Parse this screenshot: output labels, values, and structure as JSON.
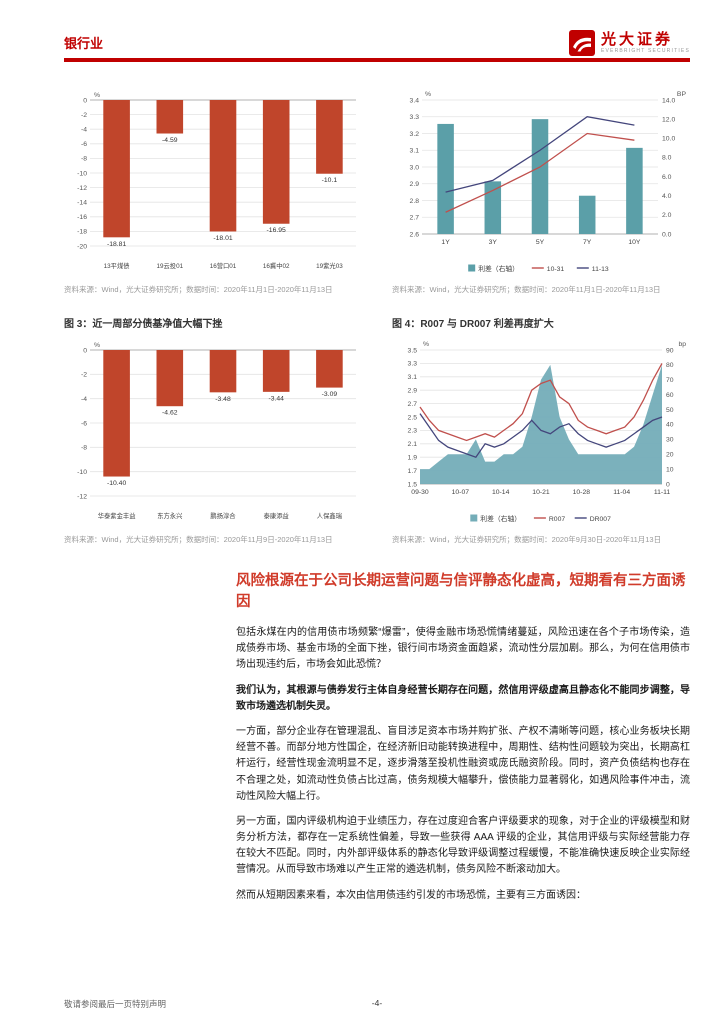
{
  "header": {
    "section": "银行业",
    "logo_cn": "光大证券",
    "logo_en": "EVERBRIGHT SECURITIES"
  },
  "section": {
    "heading": "风险根源在于公司长期运营问题与信评静态化虚高，短期看有三方面诱因",
    "p1": "包括永煤在内的信用债市场频繁“爆雷”，使得金融市场恐慌情绪蔓延，风险迅速在各个子市场传染，造成债券市场、基金市场的全面下挫，银行间市场资金面趋紧，流动性分层加剧。那么，为何在信用债市场出现违约后，市场会如此恐慌？",
    "p2": "我们认为，其根源与债券发行主体自身经营长期存在问题，然信用评级虚高且静态化不能同步调整，导致市场遴选机制失灵。",
    "p3": "一方面，部分企业存在管理混乱、盲目涉足资本市场并购扩张、产权不清晰等问题，核心业务板块长期经营不善。而部分地方性国企，在经济新旧动能转换进程中，周期性、结构性问题较为突出，长期高杠杆运行，经营性现金流明显不足，逐步滑落至投机性融资或庞氏融资阶段。同时，资产负债结构也存在不合理之处，如流动性负债占比过高，债务规模大幅攀升，偿债能力显著弱化，如遇风险事件冲击，流动性风险大幅上行。",
    "p4": "另一方面，国内评级机构迫于业绩压力，存在过度迎合客户评级要求的现象，对于企业的评级模型和财务分析方法，都存在一定系统性偏差，导致一些获得 AAA 评级的企业，其信用评级与实际经营能力存在较大不匹配。同时，内外部评级体系的静态化导致评级调整过程缓慢，不能准确快速反映企业实际经营情况。从而导致市场难以产生正常的遴选机制，债务风险不断滚动加大。",
    "p5": "然而从短期因素来看，本次由信用债违约引发的市场恐慌，主要有三方面诱因："
  },
  "footer": {
    "disclaimer": "敬请参阅最后一页特别声明",
    "page": "-4-"
  },
  "chart_data": [
    {
      "type": "bar",
      "title": "",
      "unit": "%",
      "categories": [
        "13平煤债",
        "19云投01",
        "16营口01",
        "16冀中02",
        "19紫光03"
      ],
      "values": [
        -18.81,
        -4.59,
        -18.01,
        -16.95,
        -10.1
      ],
      "labels": [
        "-18.81",
        "-4.59",
        "-18.01",
        "-16.95",
        "-10.1"
      ],
      "ylim": [
        -20,
        0
      ],
      "ytick_step": 2,
      "bar_color": "#c0452b",
      "source": "资料来源：Wind，光大证券研究所；数据时间：2020年11月1日-2020年11月13日"
    },
    {
      "type": "bar-line",
      "title": "",
      "unit_left": "%",
      "unit_right": "BP",
      "categories": [
        "1Y",
        "3Y",
        "5Y",
        "7Y",
        "10Y"
      ],
      "bars": {
        "name": "利差（右轴）",
        "values": [
          11.5,
          5.5,
          12.0,
          4.0,
          9.0
        ],
        "color": "#5b9fa8"
      },
      "lines": [
        {
          "name": "10-31",
          "values": [
            2.73,
            2.86,
            3.0,
            3.2,
            3.16
          ],
          "color": "#c0504d"
        },
        {
          "name": "11-13",
          "values": [
            2.85,
            2.92,
            3.1,
            3.3,
            3.25
          ],
          "color": "#44467c"
        }
      ],
      "ylim_left": [
        2.6,
        3.4
      ],
      "ytick_left": 0.1,
      "ylim_right": [
        0,
        14
      ],
      "ytick_right": 2,
      "source": "资料来源：Wind，光大证券研究所；数据时间：2020年11月1日-2020年11月13日"
    },
    {
      "type": "bar",
      "title": "图 3：近一周部分债基净值大幅下挫",
      "unit": "%",
      "categories": [
        "华泰紫金丰益",
        "东方永兴",
        "鹏扬淳合",
        "泰康添益",
        "人保鑫瑞"
      ],
      "values": [
        -10.4,
        -4.62,
        -3.48,
        -3.44,
        -3.09
      ],
      "labels": [
        "-10.40",
        "-4.62",
        "-3.48",
        "-3.44",
        "-3.09"
      ],
      "ylim": [
        -12,
        0
      ],
      "ytick_step": 2,
      "bar_color": "#c0452b",
      "source": "资料来源：Wind，光大证券研究所；数据时间：2020年11月9日-2020年11月13日"
    },
    {
      "type": "area-line",
      "title": "图 4：R007 与 DR007 利差再度扩大",
      "unit_left": "%",
      "unit_right": "bp",
      "x_ticks": [
        "09-30",
        "10-07",
        "10-14",
        "10-21",
        "10-28",
        "11-04",
        "11-11"
      ],
      "area": {
        "name": "利差（右轴）",
        "color": "#74adb8",
        "values": [
          10,
          10,
          15,
          20,
          20,
          20,
          30,
          15,
          15,
          20,
          20,
          25,
          45,
          70,
          80,
          45,
          30,
          20,
          20,
          20,
          20,
          20,
          20,
          25,
          40,
          60,
          80
        ]
      },
      "lines": [
        {
          "name": "R007",
          "color": "#c0504d",
          "values": [
            2.65,
            2.45,
            2.3,
            2.25,
            2.2,
            2.15,
            2.2,
            2.25,
            2.2,
            2.3,
            2.4,
            2.55,
            2.9,
            3.0,
            3.05,
            2.8,
            2.7,
            2.45,
            2.35,
            2.3,
            2.25,
            2.3,
            2.35,
            2.5,
            2.75,
            3.05,
            3.3
          ]
        },
        {
          "name": "DR007",
          "color": "#44467c",
          "values": [
            2.55,
            2.35,
            2.15,
            2.05,
            2.0,
            1.95,
            1.9,
            2.1,
            2.05,
            2.1,
            2.2,
            2.3,
            2.45,
            2.3,
            2.25,
            2.35,
            2.4,
            2.25,
            2.15,
            2.1,
            2.05,
            2.1,
            2.15,
            2.25,
            2.35,
            2.45,
            2.5
          ]
        }
      ],
      "ylim_left": [
        1.5,
        3.5
      ],
      "ytick_left": 0.2,
      "ylim_right": [
        0,
        90
      ],
      "ytick_right": 10,
      "source": "资料来源：Wind，光大证券研究所；数据时间：2020年9月30日-2020年11月13日"
    }
  ]
}
